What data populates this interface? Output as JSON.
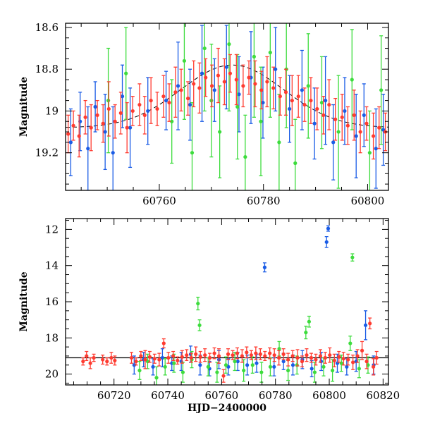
{
  "chart_data": [
    {
      "panel": "top",
      "type": "scatter",
      "xlabel": "",
      "ylabel": "Magnitude",
      "xlim": [
        60742,
        60804
      ],
      "ylim": [
        19.38,
        18.58
      ],
      "y_inverted": true,
      "x_ticks": [
        60760,
        60780,
        60800
      ],
      "y_ticks": [
        18.6,
        18.8,
        19,
        19.2
      ],
      "y_tick_labels": [
        "18.6",
        "18.8",
        "19",
        "19.2"
      ],
      "model_curve": {
        "style": "dashed",
        "color": "#000000",
        "center_x": 60774,
        "min_mag": 18.78,
        "base_mag": 19.08,
        "half_width": 14
      },
      "series": [
        {
          "color": "#ff3b30",
          "x": [
            60742.5,
            60743.5,
            60744.6,
            60745.8,
            60746.9,
            60748.1,
            60749.2,
            60750.3,
            60751.5,
            60752.6,
            60753.8,
            60754.9,
            60756.2,
            60757.2,
            60758.4,
            60759.6,
            60760.8,
            60761.9,
            60763.1,
            60764.2,
            60765.5,
            60766.6,
            60767.7,
            60768.9,
            60770.1,
            60771.3,
            60772.5,
            60773.6,
            60774.8,
            60776.1,
            60777.2,
            60778.4,
            60779.6,
            60780.7,
            60781.9,
            60783.2,
            60784.3,
            60785.5,
            60786.7,
            60787.9,
            60789.1,
            60790.3,
            60791.5,
            60792.6,
            60793.8,
            60795.1,
            60796.2,
            60797.4,
            60798.6,
            60799.8,
            60801.1,
            60802.2,
            60803.4
          ],
          "y": [
            19.11,
            19.07,
            19.12,
            19.03,
            19.08,
            19.02,
            19.06,
            18.99,
            19.05,
            19.01,
            19.08,
            19.0,
            18.97,
            19.02,
            18.95,
            18.99,
            18.93,
            18.96,
            18.91,
            18.9,
            18.94,
            18.87,
            18.89,
            18.84,
            18.88,
            18.83,
            18.86,
            18.82,
            18.85,
            18.88,
            18.84,
            18.87,
            18.9,
            18.86,
            18.89,
            18.93,
            18.91,
            18.95,
            18.93,
            18.97,
            18.95,
            18.99,
            19.02,
            18.97,
            19.04,
            19.03,
            19.07,
            19.02,
            19.1,
            19.06,
            19.12,
            19.08,
            19.1
          ],
          "err": [
            0.09,
            0.07,
            0.1,
            0.08,
            0.11,
            0.07,
            0.09,
            0.13,
            0.08,
            0.1,
            0.12,
            0.07,
            0.1,
            0.09,
            0.11,
            0.08,
            0.1,
            0.09,
            0.12,
            0.1,
            0.08,
            0.11,
            0.12,
            0.09,
            0.1,
            0.13,
            0.11,
            0.09,
            0.12,
            0.1,
            0.08,
            0.11,
            0.09,
            0.12,
            0.1,
            0.09,
            0.11,
            0.12,
            0.1,
            0.08,
            0.11,
            0.1,
            0.09,
            0.12,
            0.1,
            0.11,
            0.09,
            0.12,
            0.1,
            0.08,
            0.11,
            0.1,
            0.09
          ]
        },
        {
          "color": "#1a5ce6",
          "x": [
            60743.0,
            60744.8,
            60746.3,
            60747.7,
            60749.6,
            60751.1,
            60752.9,
            60754.4,
            60757.8,
            60761.3,
            60763.6,
            60765.9,
            60768.2,
            60770.6,
            60772.9,
            60775.3,
            60777.6,
            60779.9,
            60782.3,
            60785.0,
            60787.4,
            60789.8,
            60791.9,
            60793.4,
            60795.6,
            60797.8,
            60799.3,
            60801.6,
            60803.0
          ],
          "y": [
            19.15,
            19.05,
            19.18,
            18.98,
            19.1,
            19.2,
            18.93,
            19.08,
            19.0,
            18.95,
            18.88,
            18.97,
            18.82,
            18.9,
            18.79,
            18.92,
            18.84,
            18.96,
            18.8,
            18.99,
            18.9,
            19.06,
            18.95,
            19.15,
            19.0,
            19.12,
            19.02,
            19.18,
            19.09
          ],
          "err": [
            0.16,
            0.14,
            0.2,
            0.12,
            0.18,
            0.22,
            0.15,
            0.19,
            0.16,
            0.14,
            0.21,
            0.17,
            0.23,
            0.15,
            0.2,
            0.18,
            0.22,
            0.17,
            0.2,
            0.16,
            0.19,
            0.17,
            0.21,
            0.18,
            0.16,
            0.2,
            0.15,
            0.19,
            0.17
          ]
        },
        {
          "color": "#3ddc3d",
          "x": [
            60750.2,
            60753.6,
            60762.4,
            60764.8,
            60766.3,
            60768.7,
            60770.0,
            60771.6,
            60773.4,
            60775.0,
            60776.5,
            60778.2,
            60779.5,
            60781.3,
            60783.0,
            60784.4,
            60786.1,
            60788.6,
            60791.2,
            60794.4,
            60797.0,
            60800.4,
            60802.6
          ],
          "y": [
            18.95,
            18.82,
            19.05,
            18.76,
            19.2,
            18.7,
            18.95,
            19.1,
            18.68,
            18.98,
            19.22,
            18.74,
            19.05,
            18.72,
            19.15,
            18.8,
            19.25,
            18.88,
            18.96,
            19.1,
            18.85,
            19.2,
            18.9
          ],
          "err": [
            0.25,
            0.22,
            0.2,
            0.28,
            0.24,
            0.3,
            0.27,
            0.22,
            0.32,
            0.25,
            0.2,
            0.29,
            0.26,
            0.31,
            0.23,
            0.28,
            0.21,
            0.25,
            0.22,
            0.27,
            0.24,
            0.2,
            0.26
          ]
        }
      ]
    },
    {
      "panel": "bottom",
      "type": "scatter",
      "xlabel": "HJD−2400000",
      "ylabel": "Magnitude",
      "xlim": [
        60702,
        60822
      ],
      "ylim": [
        20.6,
        11.4
      ],
      "y_inverted": true,
      "x_ticks": [
        60720,
        60740,
        60760,
        60780,
        60800,
        60820
      ],
      "y_ticks": [
        12,
        14,
        16,
        18,
        20
      ],
      "y_tick_labels": [
        "12",
        "14",
        "16",
        "18",
        "20"
      ],
      "model_line": {
        "style": "solid",
        "color": "#000000",
        "y": 19.1
      },
      "series": [
        {
          "color": "#ff3b30",
          "x": [
            60708.5,
            60709.8,
            60711.2,
            60712.5,
            60715.8,
            60717.4,
            60719.0,
            60720.3,
            60726.5,
            60728.2,
            60730.0,
            60731.6,
            60733.3,
            60735.1,
            60736.8,
            60738.5,
            60740.2,
            60742.0,
            60743.6,
            60745.3,
            60747.0,
            60748.7,
            60750.4,
            60752.1,
            60753.8,
            60755.6,
            60757.3,
            60759.0,
            60760.7,
            60762.4,
            60764.1,
            60765.8,
            60767.6,
            60769.3,
            60771.0,
            60772.7,
            60774.4,
            60776.1,
            60777.9,
            60779.6,
            60781.3,
            60783.0,
            60784.7,
            60786.4,
            60788.2,
            60789.9,
            60791.6,
            60793.3,
            60795.0,
            60796.7,
            60798.5,
            60800.2,
            60801.9,
            60803.6,
            60805.3,
            60807.0,
            60808.8,
            60810.5,
            60812.2,
            60813.9,
            60815.1,
            60816.4,
            60817.6
          ],
          "y": [
            19.3,
            19.0,
            19.4,
            19.1,
            19.2,
            19.3,
            19.1,
            19.25,
            19.1,
            19.3,
            19.0,
            19.2,
            19.05,
            19.15,
            19.2,
            18.3,
            19.1,
            19.0,
            19.25,
            19.05,
            18.95,
            19.1,
            18.9,
            19.05,
            18.95,
            19.1,
            18.85,
            19.0,
            20.1,
            18.9,
            18.95,
            18.85,
            19.0,
            18.8,
            18.95,
            18.85,
            18.9,
            19.0,
            18.85,
            18.95,
            19.1,
            18.9,
            19.2,
            19.0,
            19.1,
            19.3,
            18.95,
            19.1,
            19.2,
            19.0,
            19.1,
            18.95,
            19.25,
            19.05,
            19.15,
            19.2,
            19.35,
            19.0,
            18.7,
            19.3,
            17.2,
            19.6,
            19.1
          ],
          "err": [
            0.2,
            0.25,
            0.3,
            0.2,
            0.25,
            0.2,
            0.3,
            0.25,
            0.3,
            0.2,
            0.25,
            0.5,
            0.3,
            0.25,
            0.35,
            0.25,
            0.3,
            0.25,
            0.2,
            0.35,
            0.3,
            0.25,
            0.4,
            0.3,
            0.35,
            0.25,
            0.3,
            0.4,
            0.35,
            0.3,
            0.25,
            0.3,
            0.35,
            0.3,
            0.25,
            0.35,
            0.3,
            0.25,
            0.3,
            0.35,
            0.4,
            0.3,
            0.35,
            0.3,
            0.45,
            0.3,
            0.35,
            0.25,
            0.3,
            0.35,
            0.3,
            0.4,
            0.35,
            0.3,
            0.35,
            0.3,
            0.4,
            0.35,
            0.5,
            0.4,
            0.3,
            0.45,
            0.35
          ]
        },
        {
          "color": "#1a5ce6",
          "x": [
            60727.5,
            60731.0,
            60734.5,
            60738.0,
            60741.5,
            60745.0,
            60748.5,
            60752.0,
            60755.5,
            60759.0,
            60762.5,
            60766.0,
            60769.5,
            60773.0,
            60776.0,
            60779.5,
            60783.0,
            60786.5,
            60790.0,
            60793.5,
            60797.0,
            60799.0,
            60799.6,
            60803.0,
            60806.5,
            60810.0,
            60813.5,
            60816.5
          ],
          "y": [
            19.5,
            19.2,
            19.6,
            19.1,
            19.4,
            19.3,
            18.9,
            19.5,
            19.7,
            19.2,
            19.6,
            19.3,
            19.5,
            19.4,
            14.1,
            19.6,
            19.3,
            19.5,
            19.2,
            19.7,
            19.3,
            12.7,
            11.95,
            19.4,
            19.6,
            19.3,
            17.3,
            19.5
          ],
          "err": [
            0.5,
            0.4,
            0.45,
            0.5,
            0.4,
            0.5,
            0.45,
            0.55,
            0.4,
            0.5,
            0.45,
            0.5,
            0.55,
            0.5,
            0.25,
            0.5,
            0.45,
            0.55,
            0.5,
            0.45,
            0.5,
            0.3,
            0.15,
            0.5,
            0.45,
            0.55,
            0.8,
            0.5
          ]
        },
        {
          "color": "#3ddc3d",
          "x": [
            60729.5,
            60732.5,
            60735.8,
            60739.0,
            60742.3,
            60745.6,
            60748.9,
            60751.2,
            60751.8,
            60755.0,
            60758.3,
            60761.6,
            60764.9,
            60768.2,
            60771.5,
            60774.8,
            60778.1,
            60781.4,
            60784.7,
            60788.0,
            60791.3,
            60792.5,
            60794.6,
            60797.9,
            60801.2,
            60804.5,
            60807.8,
            60808.6,
            60811.1,
            60814.4
          ],
          "y": [
            19.8,
            19.3,
            20.2,
            19.6,
            19.4,
            19.9,
            19.2,
            16.1,
            17.3,
            19.6,
            19.9,
            19.5,
            19.3,
            19.8,
            19.5,
            19.9,
            19.6,
            18.6,
            19.8,
            19.5,
            17.7,
            17.1,
            19.9,
            19.6,
            19.8,
            19.4,
            18.3,
            13.55,
            19.7,
            19.5
          ],
          "err": [
            0.5,
            0.4,
            0.6,
            0.45,
            0.5,
            0.55,
            0.45,
            0.35,
            0.3,
            0.5,
            0.55,
            0.45,
            0.5,
            0.6,
            0.45,
            0.55,
            0.5,
            0.4,
            0.55,
            0.5,
            0.35,
            0.3,
            0.55,
            0.5,
            0.6,
            0.45,
            0.4,
            0.2,
            0.5,
            0.45
          ]
        }
      ]
    }
  ]
}
